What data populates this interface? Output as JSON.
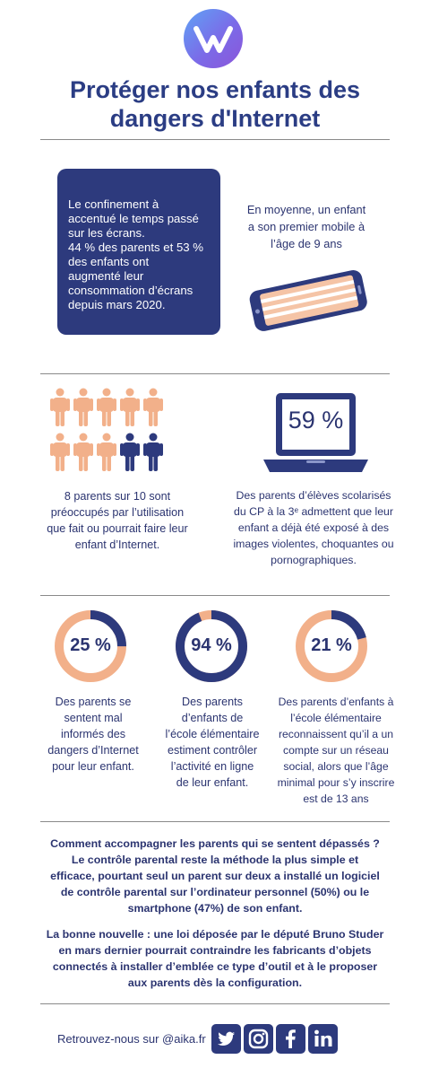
{
  "title_line1": "Protéger nos enfants des",
  "title_line2": "dangers d'Internet",
  "colors": {
    "navy": "#2d3a7d",
    "peach": "#f2b08a",
    "text": "#2b3470"
  },
  "section1": {
    "box_lines": [
      "Le confinement à",
      "accentué le temps passé",
      "sur les écrans.",
      "44 % des parents et 53 %",
      "des enfants ont",
      "augmenté leur",
      "consommation d’écrans",
      "depuis mars 2020."
    ],
    "mobile_lines": [
      "En moyenne, un enfant",
      "a son premier mobile à",
      "l’âge de 9 ans"
    ],
    "icon": "smartphone-icon"
  },
  "section2": {
    "people_icon": "person-icon",
    "people_total": 10,
    "people_highlight": 8,
    "people_lines": [
      "8 parents sur 10 sont",
      "préoccupés par l’utilisation",
      "que fait ou pourrait faire leur",
      "enfant d’Internet."
    ],
    "laptop_value": "59 %",
    "laptop_lines": [
      "Des parents d’élèves scolarisés",
      "du CP à la 3ᵉ admettent que leur",
      "enfant a déjà été exposé à des",
      "images violentes, choquantes ou",
      "pornographiques."
    ]
  },
  "section3": {
    "stats": [
      {
        "value": "25 %",
        "fraction": 0.25,
        "lines": [
          "Des parents se",
          "sentent mal",
          "informés des",
          "dangers d’Internet",
          "pour leur enfant."
        ]
      },
      {
        "value": "94 %",
        "fraction": 0.94,
        "lines": [
          "Des parents",
          "d’enfants de",
          "l’école élémentaire",
          "estiment contrôler",
          "l’activité en ligne",
          "de leur enfant."
        ]
      },
      {
        "value": "21 %",
        "fraction": 0.21,
        "lines": [
          "Des parents d’enfants à",
          "l’école élémentaire",
          "reconnaissent qu’il a un",
          "compte sur un réseau",
          "social, alors que l’âge",
          "minimal pour s’y inscrire",
          "est de 13 ans"
        ]
      }
    ]
  },
  "section4": {
    "para1_lines": [
      "Comment accompagner les parents qui se sentent dépassés ?",
      "Le contrôle parental reste la méthode la plus simple et",
      "efficace, pourtant seul un parent sur deux a installé un logiciel",
      "de contrôle parental sur l’ordinateur personnel (50%) ou le",
      "smartphone (47%) de son enfant."
    ],
    "para2_lines": [
      "La bonne nouvelle : une loi déposée par le député Bruno Studer",
      "en mars dernier pourrait contraindre les fabricants d’objets",
      "connectés à installer d’emblée ce type d’outil et à le proposer",
      "aux parents dès la configuration."
    ]
  },
  "footer": {
    "text": "Retrouvez-nous sur @aika.fr",
    "social": [
      "twitter-icon",
      "instagram-icon",
      "facebook-icon",
      "linkedin-icon"
    ]
  }
}
